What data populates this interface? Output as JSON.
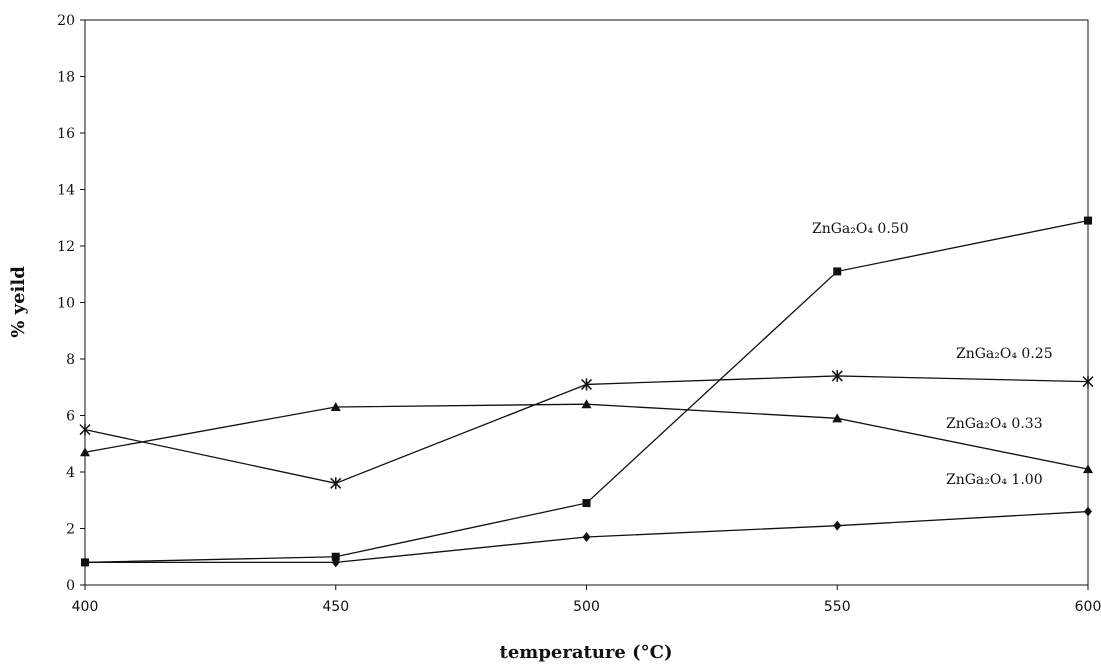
{
  "chart_data": {
    "type": "line",
    "xlabel": "temperature (°C)",
    "ylabel": "% yeild",
    "xlim": [
      400,
      600
    ],
    "ylim": [
      0,
      20
    ],
    "x": [
      400,
      450,
      500,
      550,
      600
    ],
    "xticks": [
      400,
      450,
      500,
      550,
      600
    ],
    "yticks": [
      0,
      2,
      4,
      6,
      8,
      10,
      12,
      14,
      16,
      18,
      20
    ],
    "grid": false,
    "legend": "inline labels near line ends",
    "series": [
      {
        "name": "ZnGa₂O₄ 0.50",
        "marker": "square",
        "values": [
          0.8,
          1.0,
          2.9,
          11.1,
          12.9
        ]
      },
      {
        "name": "ZnGa₂O₄ 0.25",
        "marker": "asterisk",
        "values": [
          5.5,
          3.6,
          7.1,
          7.4,
          7.2
        ]
      },
      {
        "name": "ZnGa₂O₄ 0.33",
        "marker": "triangle",
        "values": [
          4.7,
          6.3,
          6.4,
          5.9,
          4.1
        ]
      },
      {
        "name": "ZnGa₂O₄ 1.00",
        "marker": "diamond",
        "values": [
          0.8,
          0.8,
          1.7,
          2.1,
          2.6
        ]
      }
    ]
  }
}
